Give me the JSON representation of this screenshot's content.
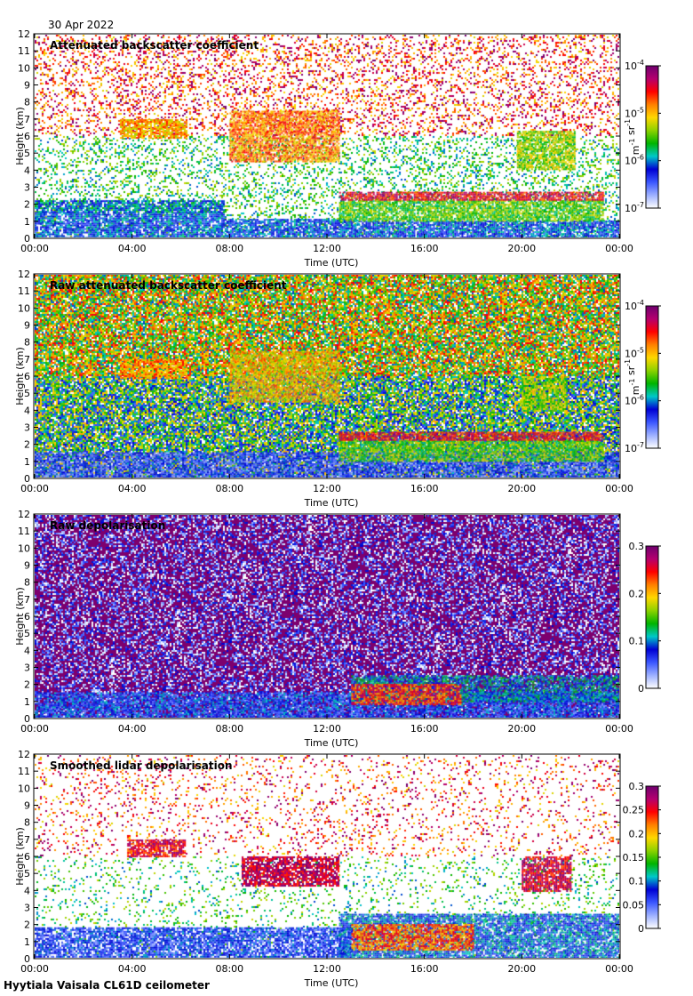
{
  "date": "30 Apr 2022",
  "footer": "Hyytiala Vaisala CL61D ceilometer",
  "colorbar_stops": [
    "#ffffff",
    "#9db0ff",
    "#3b57ff",
    "#0000d4",
    "#00c8c8",
    "#00b400",
    "#8cd200",
    "#ffd700",
    "#ff8000",
    "#ff0000",
    "#b4006e",
    "#6e006e"
  ],
  "chart_data": [
    {
      "type": "heatmap",
      "title": "Attenuated backscatter coefficient",
      "xlabel": "Time (UTC)",
      "ylabel": "Height (km)",
      "x_ticks": [
        "00:00",
        "04:00",
        "08:00",
        "12:00",
        "16:00",
        "20:00",
        "00:00"
      ],
      "y_ticks": [
        "0",
        "1",
        "2",
        "3",
        "4",
        "5",
        "6",
        "7",
        "8",
        "9",
        "10",
        "11",
        "12"
      ],
      "xlim_hours": [
        0,
        24
      ],
      "ylim_km": [
        0,
        12
      ],
      "colorbar": {
        "scale": "log",
        "min": "10-7",
        "max": "10-4",
        "tick_labels": [
          {
            "base": "10",
            "exp": "-7"
          },
          {
            "base": "10",
            "exp": "-6"
          },
          {
            "base": "10",
            "exp": "-5"
          },
          {
            "base": "10",
            "exp": "-4"
          }
        ],
        "unit_parts": [
          {
            "t": "m",
            "exp": "-1"
          },
          {
            "t": " sr",
            "exp": "-1"
          }
        ]
      },
      "noise_density": 0.25,
      "features": [
        {
          "t0": 0,
          "t1": 7.8,
          "h0": 0,
          "h1": 1.5,
          "v": 0.28
        },
        {
          "t0": 0,
          "t1": 7.8,
          "h0": 1.5,
          "h1": 2.2,
          "v": 0.33
        },
        {
          "t0": 3.5,
          "t1": 6.2,
          "h0": 5.9,
          "h1": 7.0,
          "v": 0.68
        },
        {
          "t0": 7.8,
          "t1": 13,
          "h0": 0,
          "h1": 1.1,
          "v": 0.28
        },
        {
          "t0": 8,
          "t1": 12.5,
          "h0": 4.5,
          "h1": 7.5,
          "v": 0.72
        },
        {
          "t0": 13,
          "t1": 24,
          "h0": 0,
          "h1": 1.0,
          "v": 0.28
        },
        {
          "t0": 12.5,
          "t1": 23.3,
          "h0": 1.0,
          "h1": 2.2,
          "v": 0.5
        },
        {
          "t0": 12.5,
          "t1": 23.3,
          "h0": 2.2,
          "h1": 2.7,
          "v": 0.85
        },
        {
          "t0": 19.8,
          "t1": 22.2,
          "h0": 4.0,
          "h1": 6.3,
          "v": 0.55
        }
      ]
    },
    {
      "type": "heatmap",
      "title": "Raw attenuated backscatter coefficient",
      "xlabel": "Time (UTC)",
      "ylabel": "Height (km)",
      "x_ticks": [
        "00:00",
        "04:00",
        "08:00",
        "12:00",
        "16:00",
        "20:00",
        "00:00"
      ],
      "y_ticks": [
        "0",
        "1",
        "2",
        "3",
        "4",
        "5",
        "6",
        "7",
        "8",
        "9",
        "10",
        "11",
        "12"
      ],
      "xlim_hours": [
        0,
        24
      ],
      "ylim_km": [
        0,
        12
      ],
      "colorbar": {
        "scale": "log",
        "min": "10-7",
        "max": "10-4",
        "tick_labels": [
          {
            "base": "10",
            "exp": "-7"
          },
          {
            "base": "10",
            "exp": "-6"
          },
          {
            "base": "10",
            "exp": "-5"
          },
          {
            "base": "10",
            "exp": "-4"
          }
        ],
        "unit_parts": [
          {
            "t": "m",
            "exp": "-1"
          },
          {
            "t": " sr",
            "exp": "-1"
          }
        ]
      },
      "noise_density": 0.9,
      "features": [
        {
          "t0": 0,
          "t1": 24,
          "h0": 0,
          "h1": 1.5,
          "v": 0.2
        },
        {
          "t0": 3.5,
          "t1": 6.2,
          "h0": 5.9,
          "h1": 7.0,
          "v": 0.7
        },
        {
          "t0": 8,
          "t1": 12.5,
          "h0": 4.5,
          "h1": 7.5,
          "v": 0.65
        },
        {
          "t0": 12.5,
          "t1": 23.3,
          "h0": 1.0,
          "h1": 2.2,
          "v": 0.5
        },
        {
          "t0": 12.5,
          "t1": 23.3,
          "h0": 2.2,
          "h1": 2.7,
          "v": 0.85
        },
        {
          "t0": 20,
          "t1": 21.8,
          "h0": 4.0,
          "h1": 6.0,
          "v": 0.55
        }
      ]
    },
    {
      "type": "heatmap",
      "title": "Raw depolarisation",
      "xlabel": "Time (UTC)",
      "ylabel": "Height (km)",
      "x_ticks": [
        "00:00",
        "04:00",
        "08:00",
        "12:00",
        "16:00",
        "20:00",
        "00:00"
      ],
      "y_ticks": [
        "0",
        "1",
        "2",
        "3",
        "4",
        "5",
        "6",
        "7",
        "8",
        "9",
        "10",
        "11",
        "12"
      ],
      "xlim_hours": [
        0,
        24
      ],
      "ylim_km": [
        0,
        12
      ],
      "colorbar": {
        "scale": "linear",
        "min": 0,
        "max": 0.3,
        "tick_labels": [
          "0",
          "0.1",
          "0.2",
          "0.3"
        ]
      },
      "noise_density": 0.95,
      "features": [
        {
          "t0": 0,
          "t1": 24,
          "h0": 0,
          "h1": 1.5,
          "v": 0.25
        },
        {
          "t0": 13,
          "t1": 24,
          "h0": 1.0,
          "h1": 2.5,
          "v": 0.35
        },
        {
          "t0": 13,
          "t1": 17.5,
          "h0": 0.8,
          "h1": 2.0,
          "v": 0.8
        }
      ]
    },
    {
      "type": "heatmap",
      "title": "Smoothed lidar depolarisation",
      "xlabel": "Time (UTC)",
      "ylabel": "Height (km)",
      "x_ticks": [
        "00:00",
        "04:00",
        "08:00",
        "12:00",
        "16:00",
        "20:00",
        "00:00"
      ],
      "y_ticks": [
        "0",
        "1",
        "2",
        "3",
        "4",
        "5",
        "6",
        "7",
        "8",
        "9",
        "10",
        "11",
        "12"
      ],
      "xlim_hours": [
        0,
        24
      ],
      "ylim_km": [
        0,
        12
      ],
      "colorbar": {
        "scale": "linear",
        "min": 0,
        "max": 0.3,
        "tick_labels": [
          "0",
          "0.05",
          "0.1",
          "0.15",
          "0.2",
          "0.25",
          "0.3"
        ]
      },
      "noise_density": 0.12,
      "features": [
        {
          "t0": 0,
          "t1": 13,
          "h0": 0,
          "h1": 1.8,
          "v": 0.22
        },
        {
          "t0": 3.8,
          "t1": 6.2,
          "h0": 6.0,
          "h1": 7.0,
          "v": 0.85
        },
        {
          "t0": 8.5,
          "t1": 12.5,
          "h0": 4.3,
          "h1": 6.0,
          "v": 0.9
        },
        {
          "t0": 12.5,
          "t1": 24,
          "h0": 0,
          "h1": 2.6,
          "v": 0.3
        },
        {
          "t0": 13,
          "t1": 18,
          "h0": 0.5,
          "h1": 2.0,
          "v": 0.75
        },
        {
          "t0": 20,
          "t1": 22,
          "h0": 4.0,
          "h1": 6.0,
          "v": 0.88
        }
      ]
    }
  ]
}
